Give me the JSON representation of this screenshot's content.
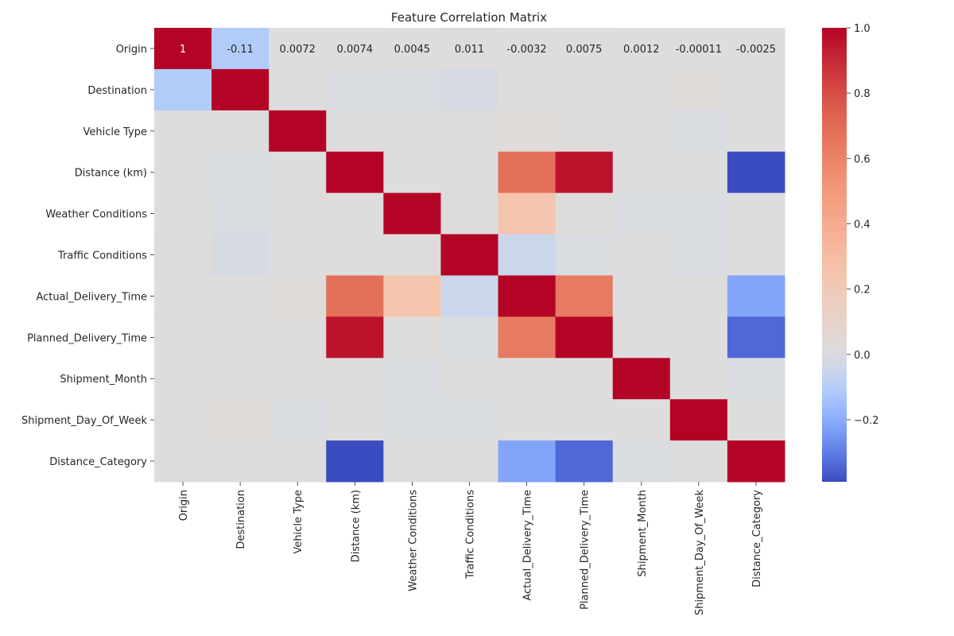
{
  "chart_data": {
    "type": "heatmap",
    "title": "Feature Correlation Matrix",
    "xlabel": "",
    "ylabel": "",
    "features": [
      "Origin",
      "Destination",
      "Vehicle Type",
      "Distance (km)",
      "Weather Conditions",
      "Traffic Conditions",
      "Actual_Delivery_Time",
      "Planned_Delivery_Time",
      "Shipment_Month",
      "Shipment_Day_Of_Week",
      "Distance_Category"
    ],
    "matrix": [
      [
        1,
        -0.11,
        0.0072,
        0.0074,
        0.0045,
        0.011,
        -0.0032,
        0.0075,
        0.0012,
        -0.00011,
        -0.0025
      ],
      [
        -0.11,
        1,
        0.0,
        -0.01,
        -0.01,
        -0.02,
        0.0,
        0.0,
        0.0,
        0.02,
        0.0
      ],
      [
        0.0072,
        0.0,
        1,
        0.0,
        0.01,
        0.0,
        0.02,
        0.01,
        0.0,
        -0.01,
        0.0
      ],
      [
        0.0074,
        -0.01,
        0.0,
        1,
        0.0,
        0.0,
        0.68,
        0.96,
        0.0,
        0.0,
        -0.39
      ],
      [
        0.0045,
        -0.01,
        0.01,
        0.0,
        1,
        0.01,
        0.25,
        0.01,
        -0.01,
        -0.01,
        0.0
      ],
      [
        0.011,
        -0.02,
        0.0,
        0.0,
        0.01,
        1,
        -0.05,
        -0.01,
        0.0,
        -0.01,
        0.0
      ],
      [
        -0.0032,
        0.0,
        0.02,
        0.68,
        0.25,
        -0.05,
        1,
        0.64,
        0.0,
        0.0,
        -0.22
      ],
      [
        0.0075,
        0.0,
        0.01,
        0.96,
        0.01,
        -0.01,
        0.64,
        1,
        0.0,
        0.0,
        -0.34
      ],
      [
        0.0012,
        0.0,
        0.0,
        0.0,
        -0.01,
        0.0,
        0.0,
        0.0,
        1,
        0.0,
        -0.01
      ],
      [
        -0.00011,
        0.02,
        -0.01,
        0.0,
        -0.01,
        -0.01,
        0.0,
        0.0,
        0.0,
        1,
        0.0
      ],
      [
        -0.0025,
        0.0,
        0.0,
        -0.39,
        0.0,
        0.0,
        -0.22,
        -0.34,
        -0.01,
        0.0,
        1
      ]
    ],
    "annotations": {
      "row": 0,
      "labels": [
        "1",
        "-0.11",
        "0.0072",
        "0.0074",
        "0.0045",
        "0.011",
        "-0.0032",
        "0.0075",
        "0.0012",
        "-0.00011",
        "-0.0025"
      ]
    },
    "colorbar": {
      "colormap": "coolwarm",
      "vmin": -0.39,
      "vmax": 1.0,
      "ticks": [
        -0.2,
        0.0,
        0.2,
        0.4,
        0.6,
        0.8,
        1.0
      ],
      "tick_labels": [
        "−0.2",
        "0.0",
        "0.2",
        "0.4",
        "0.6",
        "0.8",
        "1.0"
      ]
    },
    "grid": false
  }
}
